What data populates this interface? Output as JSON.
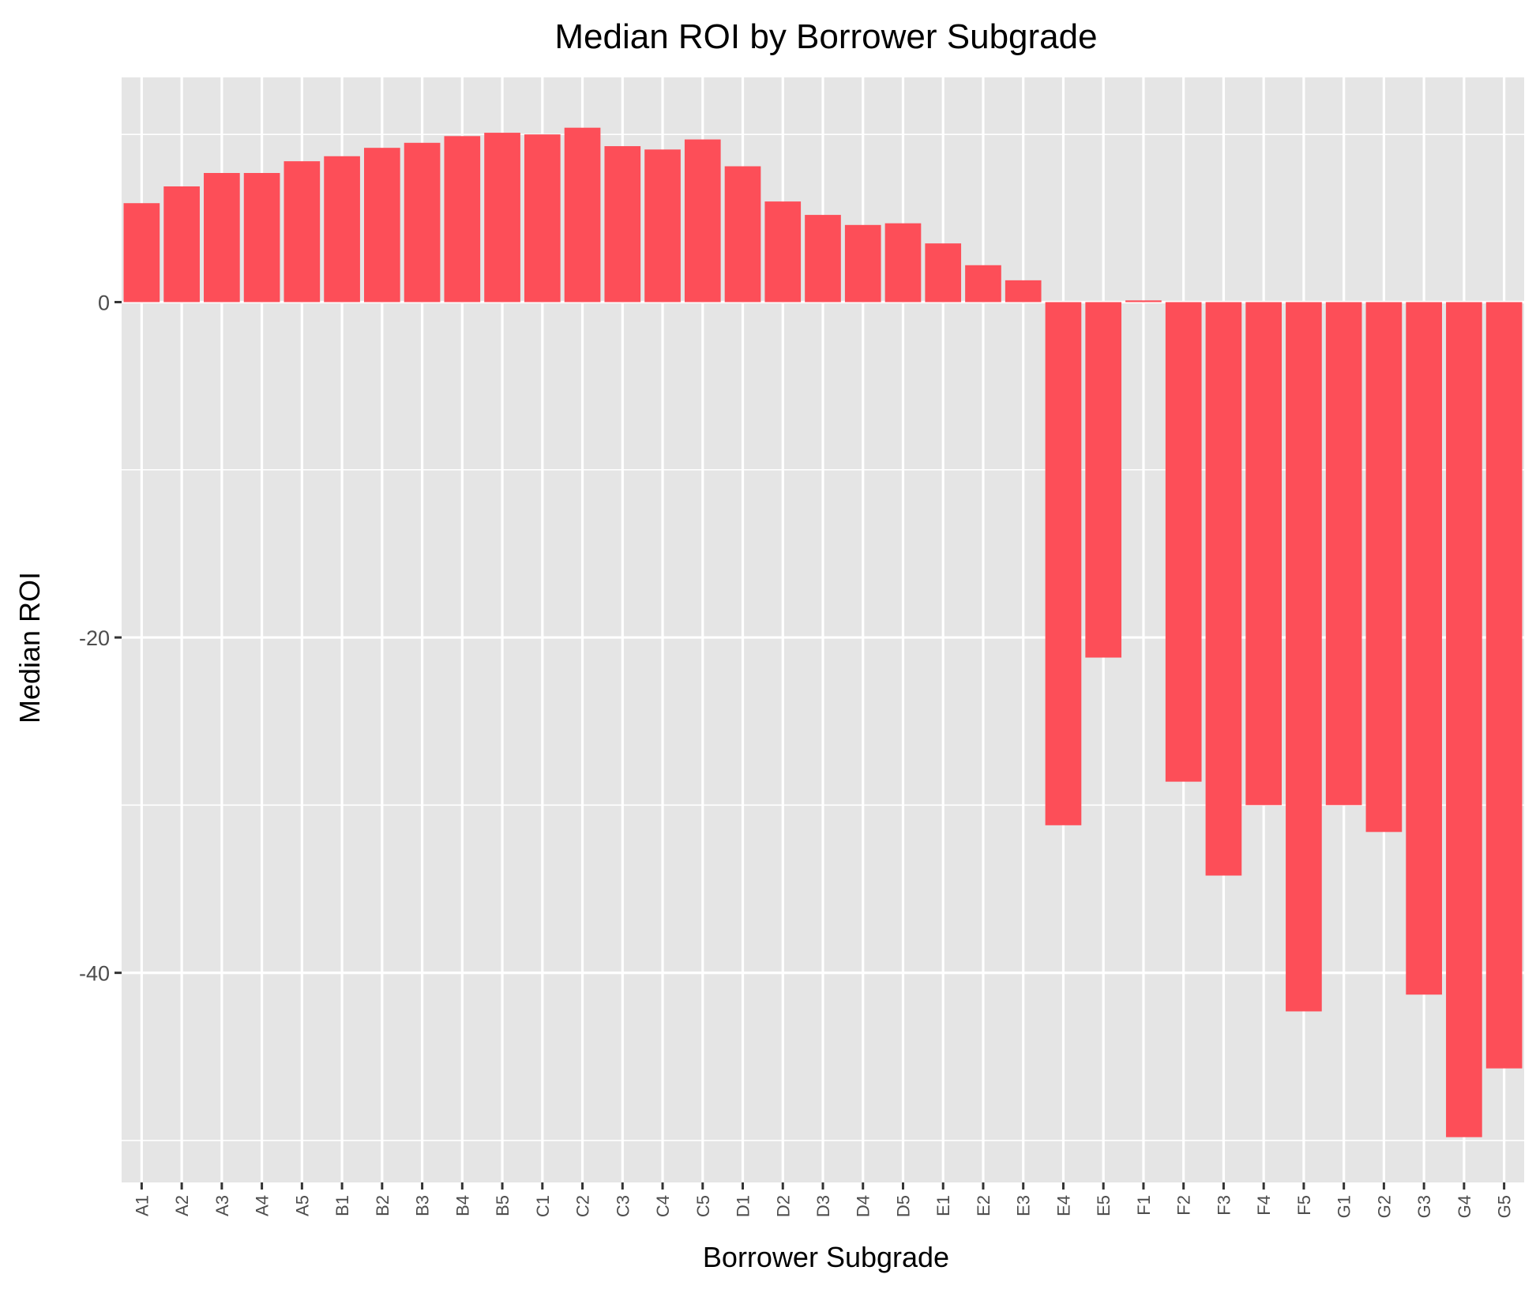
{
  "chart_data": {
    "type": "bar",
    "title": "Median ROI by Borrower Subgrade",
    "xlabel": "Borrower Subgrade",
    "ylabel": "Median ROI",
    "categories": [
      "A1",
      "A2",
      "A3",
      "A4",
      "A5",
      "B1",
      "B2",
      "B3",
      "B4",
      "B5",
      "C1",
      "C2",
      "C3",
      "C4",
      "C5",
      "D1",
      "D2",
      "D3",
      "D4",
      "D5",
      "E1",
      "E2",
      "E3",
      "E4",
      "E5",
      "F1",
      "F2",
      "F3",
      "F4",
      "F5",
      "G1",
      "G2",
      "G3",
      "G4",
      "G5"
    ],
    "values": [
      5.9,
      6.9,
      7.7,
      7.7,
      8.4,
      8.7,
      9.2,
      9.5,
      9.9,
      10.1,
      10.0,
      10.4,
      9.3,
      9.1,
      9.7,
      8.1,
      6.0,
      5.2,
      4.6,
      4.7,
      3.5,
      2.2,
      1.3,
      -31.2,
      -21.2,
      0.1,
      -28.6,
      -34.2,
      -30.0,
      -42.3,
      -30.0,
      -31.6,
      -41.3,
      -49.8,
      -45.7
    ],
    "ylim": [
      -52.5,
      13.4
    ],
    "yticks": [
      0,
      -20,
      -40
    ],
    "ytick_labels": [
      "0",
      "-20",
      "-40"
    ],
    "bar_color": "#fd4e58",
    "panel_background": "#e5e5e5",
    "grid_color": "#ffffff",
    "grid": true,
    "legend": "none"
  }
}
